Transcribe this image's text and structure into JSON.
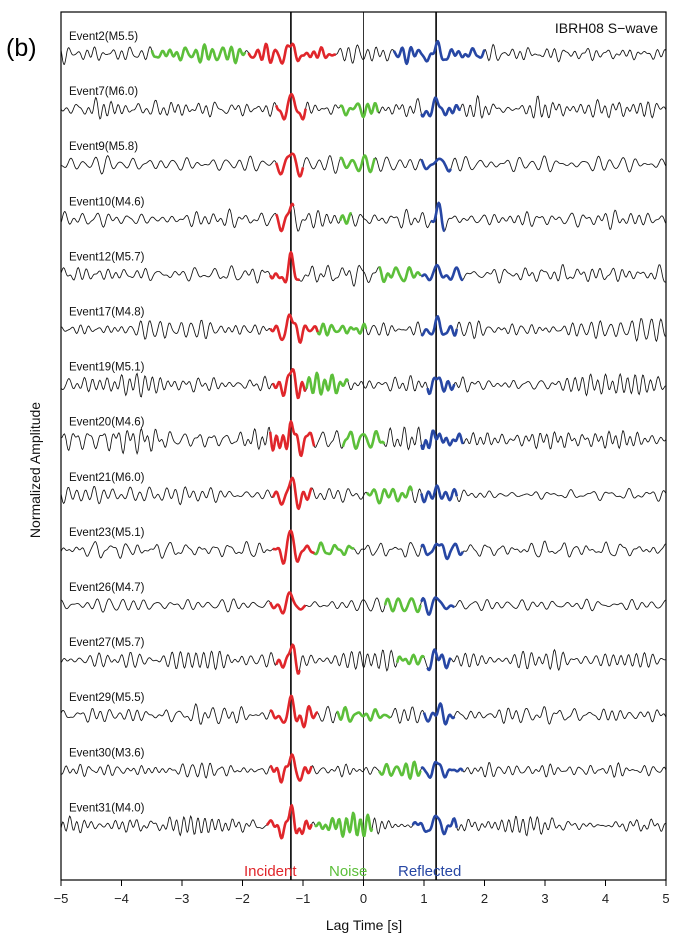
{
  "chart_data": {
    "type": "line",
    "panel_label": "(b)",
    "title": "IBRH08 S−wave",
    "xlabel": "Lag Time [s]",
    "ylabel": "Normalized Amplitude",
    "xlim": [
      -5,
      5
    ],
    "xticks": [
      -5,
      -4,
      -3,
      -2,
      -1,
      0,
      1,
      2,
      3,
      4,
      5
    ],
    "vertical_lines": [
      -1.2,
      0,
      1.2
    ],
    "phase_colors": {
      "incident": "#e0262b",
      "noise": "#5cbf3a",
      "reflected": "#2747a4",
      "trace": "#111111"
    },
    "legend": [
      {
        "label": "Incident",
        "color": "#e0262b"
      },
      {
        "label": "Noise",
        "color": "#5cbf3a"
      },
      {
        "label": "Reflected",
        "color": "#2747a4"
      }
    ],
    "series": [
      {
        "name": "Event2(M5.5)",
        "incident": [
          -1.9,
          -0.45
        ],
        "noise": [
          -3.5,
          -1.95
        ],
        "reflected": [
          0.5,
          2.0
        ]
      },
      {
        "name": "Event7(M6.0)",
        "incident": [
          -1.45,
          -0.95
        ],
        "noise": [
          -0.4,
          0.25
        ],
        "reflected": [
          0.95,
          1.6
        ]
      },
      {
        "name": "Event9(M5.8)",
        "incident": [
          -1.45,
          -1.0
        ],
        "noise": [
          -0.4,
          0.2
        ],
        "reflected": [
          0.95,
          1.45
        ]
      },
      {
        "name": "Event10(M4.6)",
        "incident": [
          -1.45,
          -1.15
        ],
        "noise": [
          -0.4,
          -0.2
        ],
        "reflected": [
          1.1,
          1.35
        ]
      },
      {
        "name": "Event12(M5.7)",
        "incident": [
          -1.55,
          -1.05
        ],
        "noise": [
          0.25,
          0.95
        ],
        "reflected": [
          0.95,
          1.65
        ]
      },
      {
        "name": "Event17(M4.8)",
        "incident": [
          -1.55,
          -0.75
        ],
        "noise": [
          -0.8,
          0.05
        ],
        "reflected": [
          0.95,
          1.55
        ]
      },
      {
        "name": "Event19(M5.1)",
        "incident": [
          -1.5,
          -0.95
        ],
        "noise": [
          -0.95,
          -0.25
        ],
        "reflected": [
          1.05,
          1.5
        ]
      },
      {
        "name": "Event20(M4.6)",
        "incident": [
          -1.55,
          -0.8
        ],
        "noise": [
          -0.35,
          0.35
        ],
        "reflected": [
          0.95,
          1.65
        ]
      },
      {
        "name": "Event21(M6.0)",
        "incident": [
          -1.5,
          -0.85
        ],
        "noise": [
          0.05,
          0.8
        ],
        "reflected": [
          0.95,
          1.55
        ]
      },
      {
        "name": "Event23(M5.1)",
        "incident": [
          -1.5,
          -0.8
        ],
        "noise": [
          -0.85,
          -0.15
        ],
        "reflected": [
          0.95,
          1.65
        ]
      },
      {
        "name": "Event26(M4.7)",
        "incident": [
          -1.55,
          -0.95
        ],
        "noise": [
          0.35,
          0.95
        ],
        "reflected": [
          0.95,
          1.5
        ]
      },
      {
        "name": "Event27(M5.7)",
        "incident": [
          -1.45,
          -1.05
        ],
        "noise": [
          0.55,
          1.0
        ],
        "reflected": [
          1.05,
          1.45
        ]
      },
      {
        "name": "Event29(M5.5)",
        "incident": [
          -1.55,
          -0.75
        ],
        "noise": [
          -0.45,
          0.45
        ],
        "reflected": [
          1.0,
          1.5
        ]
      },
      {
        "name": "Event30(M3.6)",
        "incident": [
          -1.55,
          -0.85
        ],
        "noise": [
          0.25,
          0.95
        ],
        "reflected": [
          0.95,
          1.65
        ]
      },
      {
        "name": "Event31(M4.0)",
        "incident": [
          -1.6,
          -0.85
        ],
        "noise": [
          -0.8,
          0.15
        ],
        "reflected": [
          0.8,
          1.55
        ]
      }
    ]
  }
}
